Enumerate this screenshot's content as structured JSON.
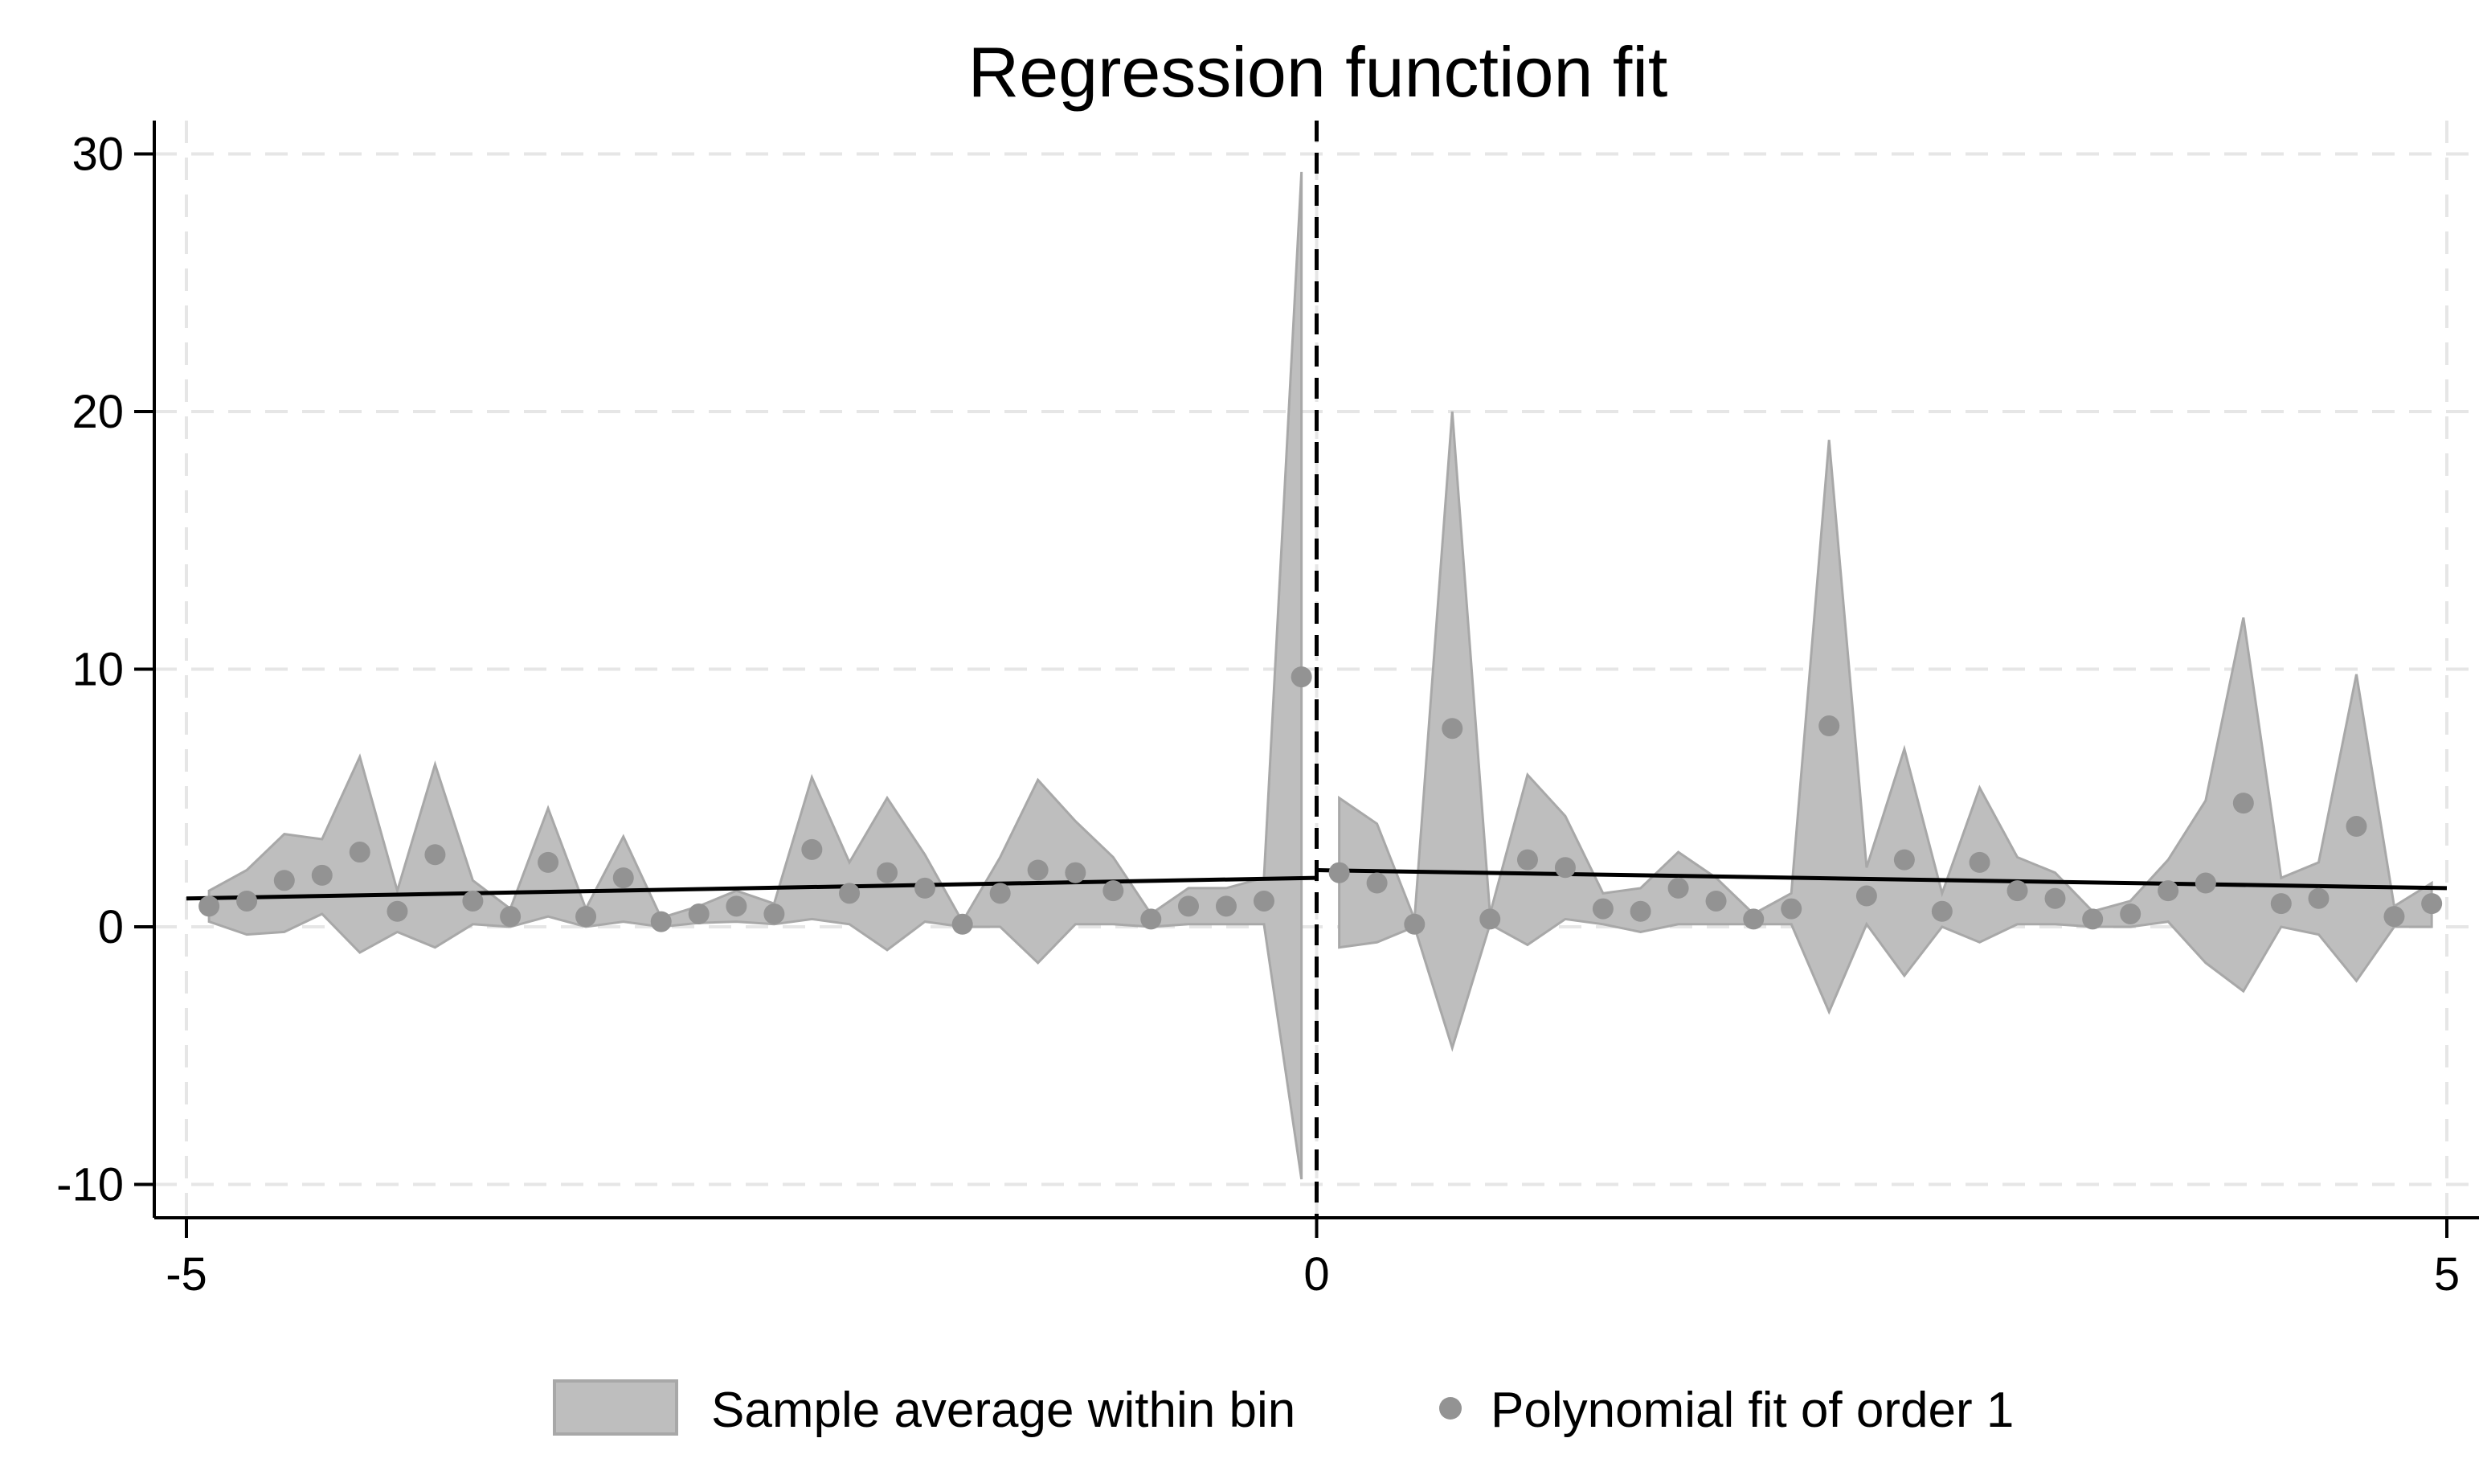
{
  "chart_data": {
    "type": "scatter",
    "title": "Regression function fit",
    "xlabel": "",
    "ylabel": "",
    "xlim": [
      -5,
      5
    ],
    "ylim": [
      -10,
      30
    ],
    "xticks": [
      -5,
      0,
      5
    ],
    "xtick_labels": [
      "-5",
      "0",
      "5"
    ],
    "yticks": [
      -10,
      0,
      10,
      20,
      30
    ],
    "ytick_labels": [
      "-10",
      "0",
      "10",
      "20",
      "30"
    ],
    "grid": true,
    "cutoff": 0,
    "legend_position": "bottom",
    "legend": [
      {
        "label": "Sample average within bin",
        "marker": "band"
      },
      {
        "label": "Polynomial fit of order 1",
        "marker": "dot"
      }
    ],
    "colors": {
      "band": "#bebebe",
      "band_edge": "#a8a8a8",
      "points": "#939393",
      "line": "#000000",
      "grid": "#e6e6e6"
    },
    "fit_left": {
      "x": [
        -5,
        0
      ],
      "y": [
        1.1,
        1.9
      ]
    },
    "fit_right": {
      "x": [
        0,
        5
      ],
      "y": [
        2.2,
        1.5
      ]
    },
    "bins_left": {
      "x": [
        -4.9,
        -4.733,
        -4.567,
        -4.4,
        -4.233,
        -4.067,
        -3.9,
        -3.733,
        -3.567,
        -3.4,
        -3.233,
        -3.067,
        -2.9,
        -2.733,
        -2.567,
        -2.4,
        -2.233,
        -2.067,
        -1.9,
        -1.733,
        -1.567,
        -1.4,
        -1.233,
        -1.067,
        -0.9,
        -0.733,
        -0.567,
        -0.4,
        -0.233,
        -0.067
      ],
      "y": [
        0.8,
        1.0,
        1.8,
        2.0,
        2.9,
        0.6,
        2.8,
        1.0,
        0.4,
        2.5,
        0.4,
        1.9,
        0.2,
        0.5,
        0.8,
        0.5,
        3.0,
        1.3,
        2.1,
        1.5,
        0.1,
        1.3,
        2.2,
        2.1,
        1.4,
        0.3,
        0.8,
        0.8,
        1.0,
        9.7
      ],
      "upper": [
        1.4,
        2.2,
        3.6,
        3.4,
        6.6,
        1.4,
        6.3,
        1.8,
        0.7,
        4.6,
        0.7,
        3.5,
        0.35,
        0.8,
        1.4,
        0.9,
        5.8,
        2.5,
        5.0,
        2.8,
        0.2,
        2.7,
        5.7,
        4.1,
        2.7,
        0.5,
        1.5,
        1.5,
        1.9,
        29.3
      ],
      "lower": [
        0.2,
        -0.3,
        -0.2,
        0.5,
        -1.0,
        -0.2,
        -0.8,
        0.1,
        0.0,
        0.4,
        0.0,
        0.2,
        0.0,
        0.15,
        0.2,
        0.1,
        0.3,
        0.1,
        -0.9,
        0.2,
        0.0,
        0.0,
        -1.4,
        0.1,
        0.1,
        0.0,
        0.1,
        0.1,
        0.1,
        -9.8
      ]
    },
    "bins_right": {
      "x": [
        0.1,
        0.267,
        0.433,
        0.6,
        0.767,
        0.933,
        1.1,
        1.267,
        1.433,
        1.6,
        1.767,
        1.933,
        2.1,
        2.267,
        2.433,
        2.6,
        2.767,
        2.933,
        3.1,
        3.267,
        3.433,
        3.6,
        3.767,
        3.933,
        4.1,
        4.267,
        4.433,
        4.6,
        4.767,
        4.933
      ],
      "y": [
        2.1,
        1.7,
        0.1,
        7.7,
        0.3,
        2.6,
        2.3,
        0.7,
        0.6,
        1.5,
        1.0,
        0.3,
        0.7,
        7.8,
        1.2,
        2.6,
        0.6,
        2.5,
        1.4,
        1.1,
        0.3,
        0.5,
        1.4,
        1.7,
        4.8,
        0.9,
        1.1,
        3.9,
        0.4,
        0.9
      ],
      "upper": [
        5.0,
        4.0,
        0.3,
        20.0,
        0.5,
        5.9,
        4.3,
        1.3,
        1.5,
        2.9,
        1.9,
        0.5,
        1.3,
        18.9,
        2.3,
        6.9,
        1.3,
        5.4,
        2.7,
        2.1,
        0.6,
        1.0,
        2.6,
        4.9,
        12.0,
        1.9,
        2.5,
        9.8,
        0.8,
        1.7
      ],
      "lower": [
        -0.8,
        -0.6,
        0.0,
        -4.7,
        0.1,
        -0.7,
        0.3,
        0.1,
        -0.2,
        0.1,
        0.1,
        0.1,
        0.1,
        -3.3,
        0.1,
        -1.9,
        0.0,
        -0.6,
        0.1,
        0.1,
        0.0,
        0.0,
        0.2,
        -1.4,
        -2.5,
        0.0,
        -0.3,
        -2.1,
        0.0,
        0.0
      ]
    }
  }
}
